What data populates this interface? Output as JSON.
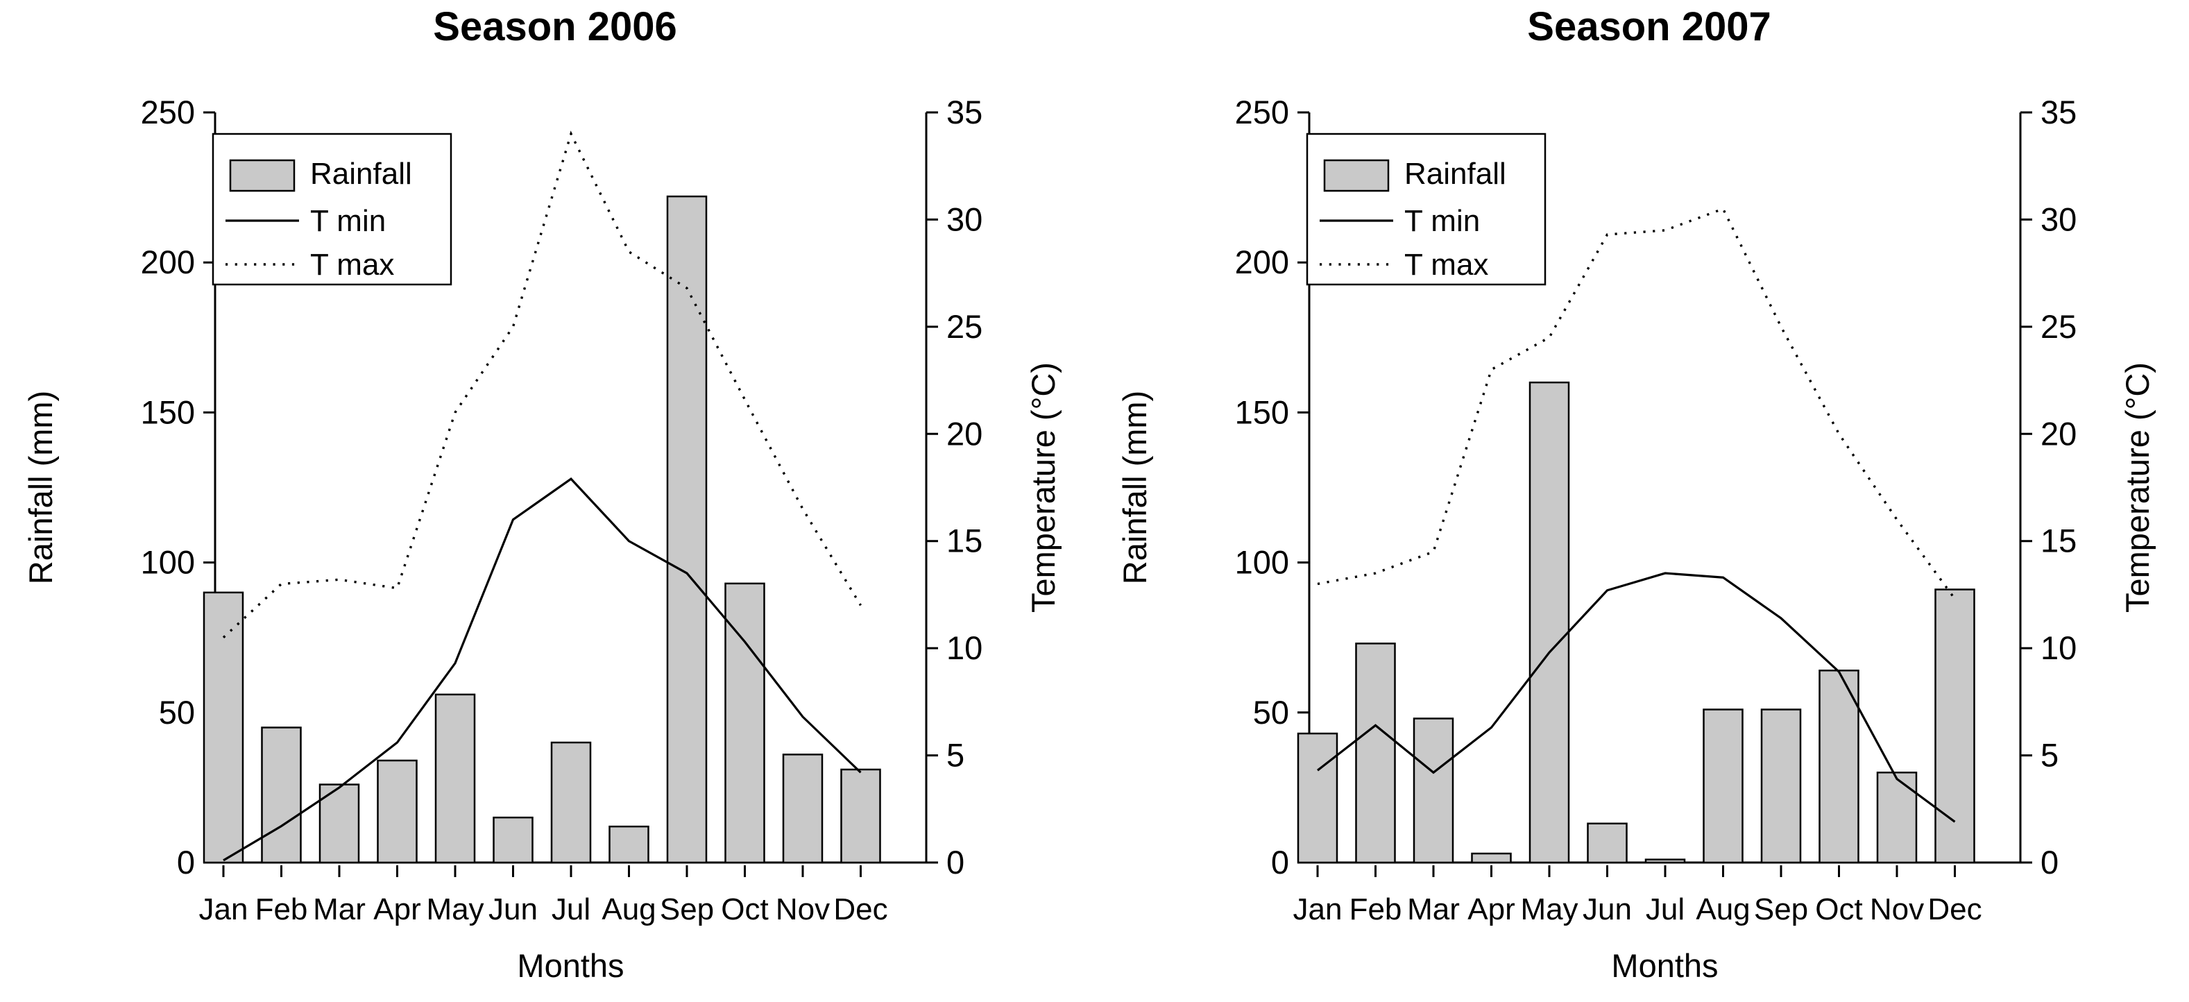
{
  "figure": {
    "background": "#ffffff",
    "bar_fill": "#c9c9c9",
    "line_color": "#000000",
    "xlabel": "Months",
    "ylabel_left": "Rainfall (mm)",
    "ylabel_right": "Temperature (°C)",
    "legend": {
      "rainfall": "Rainfall",
      "tmin": "T min",
      "tmax": "T max"
    }
  },
  "chart_data": [
    {
      "type": "bar",
      "title": "Season 2006",
      "categories": [
        "Jan",
        "Feb",
        "Mar",
        "Apr",
        "May",
        "Jun",
        "Jul",
        "Aug",
        "Sep",
        "Oct",
        "Nov",
        "Dec"
      ],
      "series": [
        {
          "name": "Rainfall",
          "axis": "left",
          "style": "bar",
          "values": [
            90,
            45,
            26,
            34,
            56,
            15,
            40,
            12,
            222,
            93,
            36,
            31
          ]
        },
        {
          "name": "T min",
          "axis": "right",
          "style": "solid-line",
          "values": [
            0.1,
            1.7,
            3.5,
            5.6,
            9.3,
            16.0,
            17.9,
            15.0,
            13.5,
            10.3,
            6.8,
            4.2
          ]
        },
        {
          "name": "T max",
          "axis": "right",
          "style": "dotted-line",
          "values": [
            10.5,
            13.0,
            13.2,
            12.8,
            21.0,
            25.0,
            34.0,
            28.5,
            26.8,
            21.6,
            16.5,
            12.0
          ]
        }
      ],
      "xlabel": "Months",
      "ylabel": "Rainfall (mm)",
      "ylabel2": "Temperature (°C)",
      "ylim": [
        0,
        250
      ],
      "y2lim": [
        0,
        35
      ],
      "yticks": [
        0,
        50,
        100,
        150,
        200,
        250
      ],
      "y2ticks": [
        0,
        5,
        10,
        15,
        20,
        25,
        30,
        35
      ],
      "grid": false,
      "legend_position": "upper-left",
      "legend_entries": [
        "Rainfall",
        "T min",
        "T max"
      ]
    },
    {
      "type": "bar",
      "title": "Season 2007",
      "categories": [
        "Jan",
        "Feb",
        "Mar",
        "Apr",
        "May",
        "Jun",
        "Jul",
        "Aug",
        "Sep",
        "Oct",
        "Nov",
        "Dec"
      ],
      "series": [
        {
          "name": "Rainfall",
          "axis": "left",
          "style": "bar",
          "values": [
            43,
            73,
            48,
            3,
            160,
            13,
            1,
            51,
            51,
            64,
            30,
            91
          ]
        },
        {
          "name": "T min",
          "axis": "right",
          "style": "solid-line",
          "values": [
            4.3,
            6.4,
            4.2,
            6.3,
            9.8,
            12.7,
            13.5,
            13.3,
            11.4,
            8.9,
            3.9,
            1.9
          ]
        },
        {
          "name": "T max",
          "axis": "right",
          "style": "dotted-line",
          "values": [
            13.0,
            13.5,
            14.5,
            23.0,
            24.5,
            29.3,
            29.5,
            30.5,
            25.0,
            20.0,
            16.0,
            12.3
          ]
        }
      ],
      "xlabel": "Months",
      "ylabel": "Rainfall (mm)",
      "ylabel2": "Temperature (°C)",
      "ylim": [
        0,
        250
      ],
      "y2lim": [
        0,
        35
      ],
      "yticks": [
        0,
        50,
        100,
        150,
        200,
        250
      ],
      "y2ticks": [
        0,
        5,
        10,
        15,
        20,
        25,
        30,
        35
      ],
      "grid": false,
      "legend_position": "upper-left",
      "legend_entries": [
        "Rainfall",
        "T min",
        "T max"
      ]
    }
  ]
}
